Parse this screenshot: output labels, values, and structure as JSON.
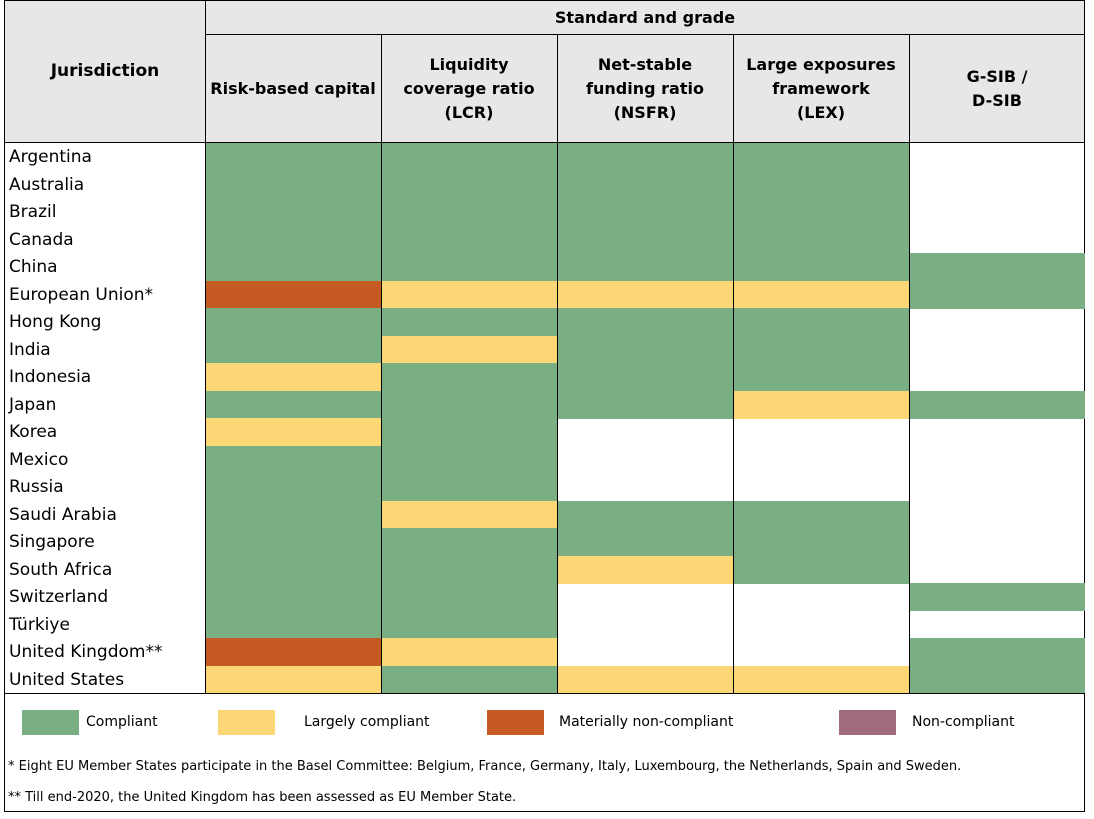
{
  "chart_data": {
    "type": "table",
    "title": "",
    "header_group": "Standard and grade",
    "row_header": "Jurisdiction",
    "columns": [
      "Risk-based capital",
      "Liquidity coverage ratio (LCR)",
      "Net-stable funding ratio (NSFR)",
      "Large exposures framework (LEX)",
      "G-SIB / D-SIB"
    ],
    "column_lines": [
      [
        "Risk-based capital"
      ],
      [
        "Liquidity",
        "coverage ratio",
        "(LCR)"
      ],
      [
        "Net-stable",
        "funding ratio",
        "(NSFR)"
      ],
      [
        "Large exposures",
        "framework",
        "(LEX)"
      ],
      [
        "G-SIB /",
        "D-SIB"
      ]
    ],
    "rows": [
      {
        "name": "Argentina",
        "grades": [
          "C",
          "C",
          "C",
          "C",
          ""
        ]
      },
      {
        "name": "Australia",
        "grades": [
          "C",
          "C",
          "C",
          "C",
          ""
        ]
      },
      {
        "name": "Brazil",
        "grades": [
          "C",
          "C",
          "C",
          "C",
          ""
        ]
      },
      {
        "name": "Canada",
        "grades": [
          "C",
          "C",
          "C",
          "C",
          ""
        ]
      },
      {
        "name": "China",
        "grades": [
          "C",
          "C",
          "C",
          "C",
          "C"
        ]
      },
      {
        "name": "European Union*",
        "grades": [
          "MNC",
          "LC",
          "LC",
          "LC",
          "C"
        ]
      },
      {
        "name": "Hong Kong",
        "grades": [
          "C",
          "C",
          "C",
          "C",
          ""
        ]
      },
      {
        "name": "India",
        "grades": [
          "C",
          "LC",
          "C",
          "C",
          ""
        ]
      },
      {
        "name": "Indonesia",
        "grades": [
          "LC",
          "C",
          "C",
          "C",
          ""
        ]
      },
      {
        "name": "Japan",
        "grades": [
          "C",
          "C",
          "C",
          "LC",
          "C"
        ]
      },
      {
        "name": "Korea",
        "grades": [
          "LC",
          "C",
          "",
          "",
          ""
        ]
      },
      {
        "name": "Mexico",
        "grades": [
          "C",
          "C",
          "",
          "",
          ""
        ]
      },
      {
        "name": "Russia",
        "grades": [
          "C",
          "C",
          "",
          "",
          ""
        ]
      },
      {
        "name": "Saudi Arabia",
        "grades": [
          "C",
          "LC",
          "C",
          "C",
          ""
        ]
      },
      {
        "name": "Singapore",
        "grades": [
          "C",
          "C",
          "C",
          "C",
          ""
        ]
      },
      {
        "name": "South Africa",
        "grades": [
          "C",
          "C",
          "LC",
          "C",
          ""
        ]
      },
      {
        "name": "Switzerland",
        "grades": [
          "C",
          "C",
          "",
          "",
          "C"
        ]
      },
      {
        "name": "Türkiye",
        "grades": [
          "C",
          "C",
          "",
          "",
          ""
        ]
      },
      {
        "name": "United Kingdom**",
        "grades": [
          "MNC",
          "LC",
          "",
          "",
          "C"
        ]
      },
      {
        "name": "United States",
        "grades": [
          "LC",
          "C",
          "LC",
          "LC",
          "C"
        ]
      }
    ],
    "legend": [
      {
        "code": "C",
        "label": "Compliant",
        "color": "#7aaf84"
      },
      {
        "code": "LC",
        "label": "Largely compliant",
        "color": "#fbd775"
      },
      {
        "code": "MNC",
        "label": "Materially non-compliant",
        "color": "#c55a22"
      },
      {
        "code": "NC",
        "label": "Non-compliant",
        "color": "#a06a7f"
      }
    ],
    "legend_placement": "bottom",
    "notes": [
      "* Eight EU Member States participate in the Basel Committee: Belgium, France, Germany, Italy, Luxembourg, the Netherlands, Spain and Sweden.",
      "** Till end-2020, the United Kingdom has been assessed as EU Member State."
    ]
  }
}
